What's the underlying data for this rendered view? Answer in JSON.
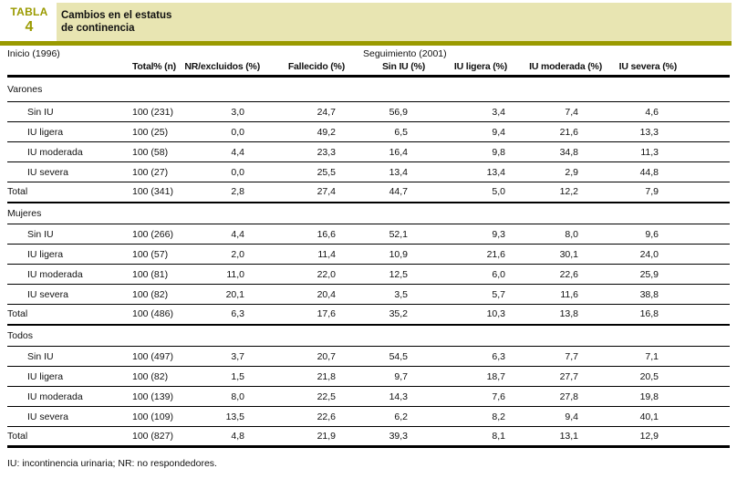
{
  "header": {
    "table_label": "TABLA",
    "table_number": "4",
    "title_line1": "Cambios en el estatus",
    "title_line2": "de continencia"
  },
  "colors": {
    "olive": "#9a9a00",
    "beige": "#e8e5b2"
  },
  "table": {
    "period_start": "Inicio (1996)",
    "period_followup": "Seguimiento (2001)",
    "columns": [
      "Total% (n)",
      "NR/excluidos (%)",
      "Fallecido (%)",
      "Sin IU (%)",
      "IU ligera (%)",
      "IU moderada (%)",
      "IU severa (%)"
    ],
    "sections": [
      {
        "label": "Varones",
        "rows": [
          {
            "label": "Sin IU",
            "values": [
              "100 (231)",
              "3,0",
              "24,7",
              "56,9",
              "3,4",
              "7,4",
              "4,6"
            ]
          },
          {
            "label": "IU ligera",
            "values": [
              "100 (25)",
              "0,0",
              "49,2",
              "6,5",
              "9,4",
              "21,6",
              "13,3"
            ]
          },
          {
            "label": "IU moderada",
            "values": [
              "100 (58)",
              "4,4",
              "23,3",
              "16,4",
              "9,8",
              "34,8",
              "11,3"
            ]
          },
          {
            "label": "IU severa",
            "values": [
              "100 (27)",
              "0,0",
              "25,5",
              "13,4",
              "13,4",
              "2,9",
              "44,8"
            ]
          }
        ],
        "total": {
          "label": "Total",
          "values": [
            "100 (341)",
            "2,8",
            "27,4",
            "44,7",
            "5,0",
            "12,2",
            "7,9"
          ]
        }
      },
      {
        "label": "Mujeres",
        "rows": [
          {
            "label": "Sin IU",
            "values": [
              "100 (266)",
              "4,4",
              "16,6",
              "52,1",
              "9,3",
              "8,0",
              "9,6"
            ]
          },
          {
            "label": "IU ligera",
            "values": [
              "100 (57)",
              "2,0",
              "11,4",
              "10,9",
              "21,6",
              "30,1",
              "24,0"
            ]
          },
          {
            "label": "IU moderada",
            "values": [
              "100 (81)",
              "11,0",
              "22,0",
              "12,5",
              "6,0",
              "22,6",
              "25,9"
            ]
          },
          {
            "label": "IU severa",
            "values": [
              "100 (82)",
              "20,1",
              "20,4",
              "3,5",
              "5,7",
              "11,6",
              "38,8"
            ]
          }
        ],
        "total": {
          "label": "Total",
          "values": [
            "100 (486)",
            "6,3",
            "17,6",
            "35,2",
            "10,3",
            "13,8",
            "16,8"
          ]
        }
      },
      {
        "label": "Todos",
        "rows": [
          {
            "label": "Sin IU",
            "values": [
              "100 (497)",
              "3,7",
              "20,7",
              "54,5",
              "6,3",
              "7,7",
              "7,1"
            ]
          },
          {
            "label": "IU ligera",
            "values": [
              "100 (82)",
              "1,5",
              "21,8",
              "9,7",
              "18,7",
              "27,7",
              "20,5"
            ]
          },
          {
            "label": "IU moderada",
            "values": [
              "100 (139)",
              "8,0",
              "22,5",
              "14,3",
              "7,6",
              "27,8",
              "19,8"
            ]
          },
          {
            "label": "IU severa",
            "values": [
              "100 (109)",
              "13,5",
              "22,6",
              "6,2",
              "8,2",
              "9,4",
              "40,1"
            ]
          }
        ],
        "total": {
          "label": "Total",
          "values": [
            "100 (827)",
            "4,8",
            "21,9",
            "39,3",
            "8,1",
            "13,1",
            "12,9"
          ]
        }
      }
    ]
  },
  "footnote": "IU: incontinencia urinaria; NR: no respondedores."
}
